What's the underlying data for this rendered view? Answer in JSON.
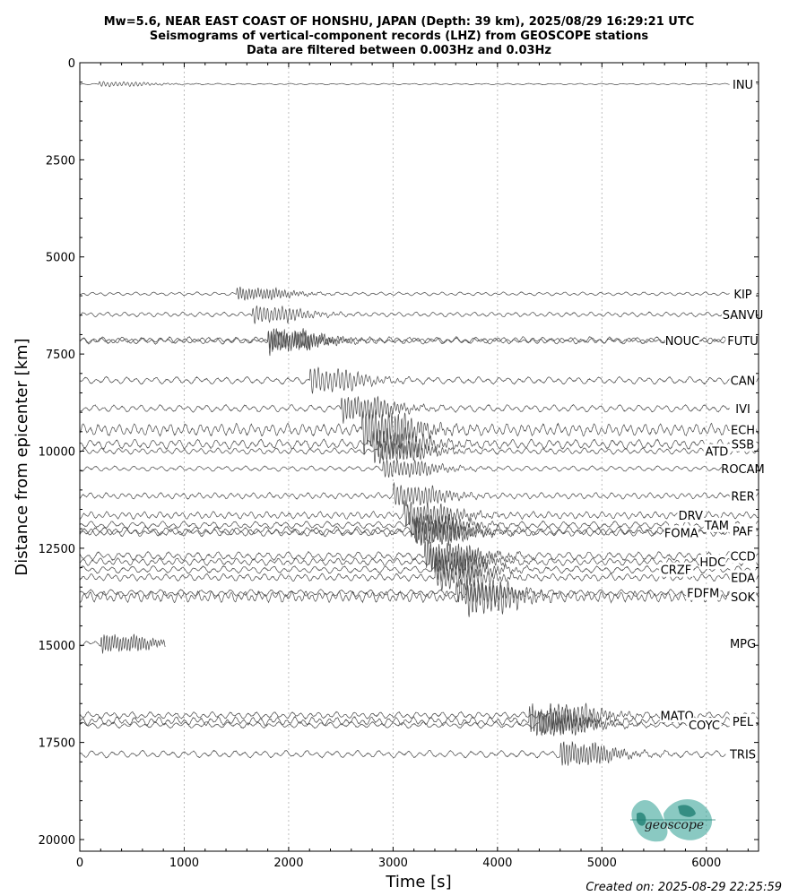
{
  "title_lines": [
    "Mw=5.6, NEAR EAST COAST OF HONSHU, JAPAN (Depth: 39 km), 2025/08/29 16:29:21 UTC",
    "Seismograms of vertical-component records (LHZ) from GEOSCOPE stations",
    "Data are filtered between 0.003Hz and 0.03Hz"
  ],
  "created": "Created on: 2025-08-29 22:25:59",
  "logo_text": "geoscope",
  "colors": {
    "trace": "#4a4a4a",
    "grid": "#bdbdbd",
    "logo": "#2a9d8f"
  },
  "chart_data": {
    "type": "line",
    "title": "Mw=5.6, NEAR EAST COAST OF HONSHU, JAPAN (Depth: 39 km), 2025/08/29 16:29:21 UTC",
    "xlabel": "Time [s]",
    "ylabel": "Distance from epicenter [km]",
    "xlim": [
      0,
      6500
    ],
    "ylim": [
      0,
      20300
    ],
    "y_inverted": true,
    "xticks": [
      0,
      1000,
      2000,
      3000,
      4000,
      5000,
      6000
    ],
    "yticks": [
      0,
      2500,
      5000,
      7500,
      10000,
      12500,
      15000,
      17500,
      20000
    ],
    "grid": "vertical dotted",
    "stations": [
      {
        "name": "INU",
        "distance": 550,
        "end_time": 6500,
        "amp": 60,
        "arrival": 180,
        "label_time": 6350
      },
      {
        "name": "KIP",
        "distance": 5950,
        "end_time": 6500,
        "amp": 150,
        "arrival": 1500,
        "label_time": 6350
      },
      {
        "name": "SANVU",
        "distance": 6480,
        "end_time": 6500,
        "amp": 200,
        "arrival": 1650,
        "label_time": 6350
      },
      {
        "name": "NOUC",
        "distance": 7150,
        "end_time": 6500,
        "amp": 300,
        "arrival": 1800,
        "label_time": 5770
      },
      {
        "name": "FUTU",
        "distance": 7150,
        "end_time": 6500,
        "amp": 220,
        "arrival": 1800,
        "label_time": 6350
      },
      {
        "name": "CAN",
        "distance": 8180,
        "end_time": 6500,
        "amp": 300,
        "arrival": 2200,
        "label_time": 6350
      },
      {
        "name": "IVI",
        "distance": 8900,
        "end_time": 6500,
        "amp": 300,
        "arrival": 2500,
        "label_time": 6350
      },
      {
        "name": "ECH",
        "distance": 9450,
        "end_time": 6500,
        "amp": 500,
        "arrival": 2700,
        "label_time": 6350
      },
      {
        "name": "SSB",
        "distance": 9820,
        "end_time": 6500,
        "amp": 400,
        "arrival": 2800,
        "label_time": 6350
      },
      {
        "name": "ATD",
        "distance": 10000,
        "end_time": 6500,
        "amp": 260,
        "arrival": 2850,
        "label_time": 6100
      },
      {
        "name": "ROCAM",
        "distance": 10450,
        "end_time": 6500,
        "amp": 220,
        "arrival": 2900,
        "label_time": 6350
      },
      {
        "name": "RER",
        "distance": 11150,
        "end_time": 6500,
        "amp": 260,
        "arrival": 3000,
        "label_time": 6350
      },
      {
        "name": "DRV",
        "distance": 11650,
        "end_time": 6500,
        "amp": 300,
        "arrival": 3100,
        "label_time": 5850
      },
      {
        "name": "TAM",
        "distance": 11900,
        "end_time": 6500,
        "amp": 300,
        "arrival": 3150,
        "label_time": 6100
      },
      {
        "name": "PAF",
        "distance": 12050,
        "end_time": 6500,
        "amp": 350,
        "arrival": 3200,
        "label_time": 6350
      },
      {
        "name": "FOMA",
        "distance": 12100,
        "end_time": 6500,
        "amp": 300,
        "arrival": 3200,
        "label_time": 5760
      },
      {
        "name": "CCD",
        "distance": 12700,
        "end_time": 6500,
        "amp": 350,
        "arrival": 3300,
        "label_time": 6350
      },
      {
        "name": "HDC",
        "distance": 12850,
        "end_time": 6500,
        "amp": 300,
        "arrival": 3350,
        "label_time": 6060
      },
      {
        "name": "CRZF",
        "distance": 13050,
        "end_time": 6500,
        "amp": 300,
        "arrival": 3400,
        "label_time": 5710
      },
      {
        "name": "EDA",
        "distance": 13250,
        "end_time": 6500,
        "amp": 300,
        "arrival": 3400,
        "label_time": 6350
      },
      {
        "name": "FDFM",
        "distance": 13650,
        "end_time": 6500,
        "amp": 280,
        "arrival": 3600,
        "label_time": 5970
      },
      {
        "name": "SOK",
        "distance": 13750,
        "end_time": 6500,
        "amp": 450,
        "arrival": 3700,
        "label_time": 6350
      },
      {
        "name": "MPG",
        "distance": 14950,
        "end_time": 820,
        "amp": 220,
        "arrival": 200,
        "label_time": 6350
      },
      {
        "name": "MATO",
        "distance": 16800,
        "end_time": 6500,
        "amp": 280,
        "arrival": 4500,
        "label_time": 5720
      },
      {
        "name": "PEL",
        "distance": 16950,
        "end_time": 6500,
        "amp": 350,
        "arrival": 4300,
        "label_time": 6350
      },
      {
        "name": "COYC",
        "distance": 17050,
        "end_time": 6500,
        "amp": 260,
        "arrival": 4400,
        "label_time": 5980
      },
      {
        "name": "TRIS",
        "distance": 17800,
        "end_time": 6500,
        "amp": 300,
        "arrival": 4600,
        "label_time": 6350
      }
    ]
  }
}
